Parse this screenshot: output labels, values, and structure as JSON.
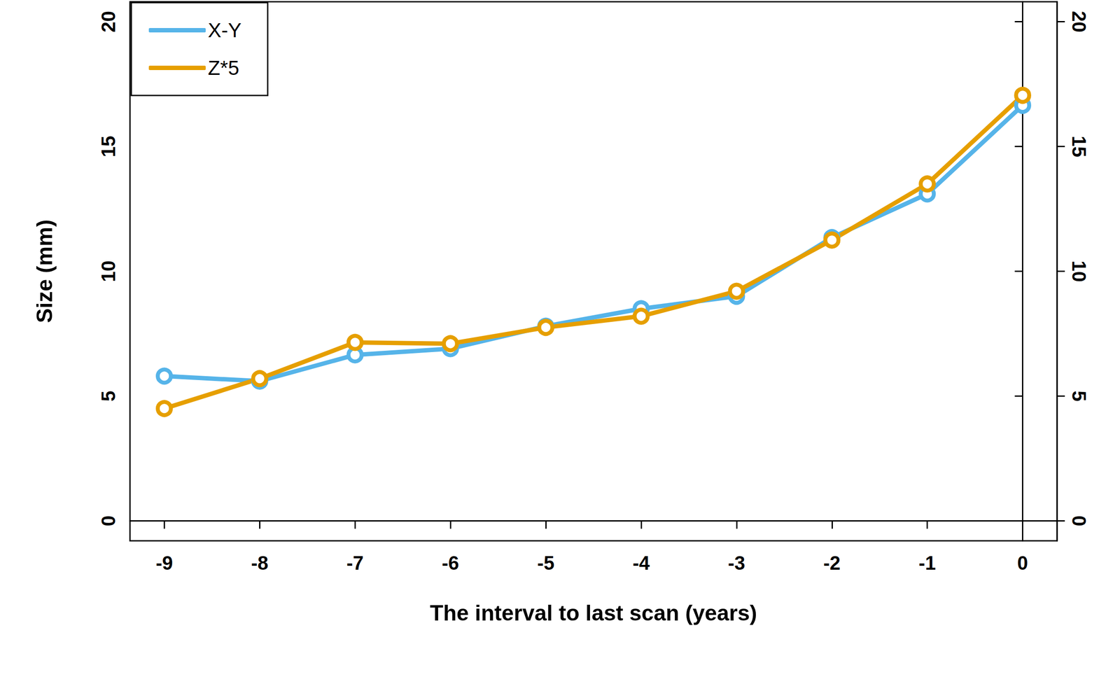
{
  "chart_data": {
    "type": "line",
    "x_label": "The interval to last scan (years)",
    "y_label": "Size (mm)",
    "x": [
      -9,
      -8,
      -7,
      -6,
      -5,
      -4,
      -3,
      -2,
      -1,
      0
    ],
    "series": [
      {
        "name": "X-Y",
        "color": "#56B4E9",
        "marker": "circle",
        "line_style": "solid",
        "values": [
          5.8,
          5.6,
          6.65,
          6.9,
          7.8,
          8.5,
          9.0,
          11.35,
          13.1,
          16.65
        ]
      },
      {
        "name": "Z*5",
        "color": "#E69F00",
        "marker": "circle",
        "line_style": "solid",
        "values": [
          4.5,
          5.7,
          7.15,
          7.1,
          7.75,
          8.2,
          9.2,
          11.25,
          13.5,
          17.05
        ]
      }
    ],
    "xlim": [
      -9.36,
      0.36
    ],
    "xticks": [
      -9,
      -8,
      -7,
      -6,
      -5,
      -4,
      -3,
      -2,
      -1,
      0
    ],
    "ylim": [
      -0.8,
      20.8
    ],
    "yticks": [
      0,
      5,
      10,
      15,
      20
    ],
    "y2lim": [
      -0.8,
      20.8
    ],
    "y2ticks": [
      0,
      5,
      10,
      15,
      20
    ],
    "grid": false,
    "legend": "top-left"
  }
}
